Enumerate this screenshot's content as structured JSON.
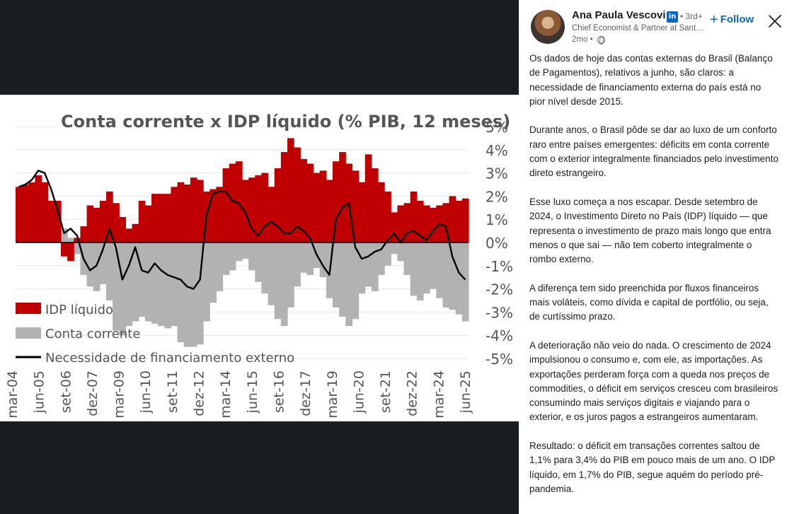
{
  "post": {
    "author": {
      "name": "Ana Paula Vescovi",
      "degree": "• 3rd+",
      "headline": "Chief Economist & Partner at Santander",
      "time": "2mo •",
      "profile_icon": "linkedin-icon",
      "visibility_icon": "globe-icon"
    },
    "follow_label": "Follow",
    "close_icon": "close-icon",
    "paragraphs": [
      "Os dados de hoje das contas externas do Brasil (Balanço de Pagamentos), relativos a junho, são claros: a necessidade de financiamento externa do país está no pior nível desde 2015.",
      "Durante anos, o Brasil pôde se dar ao luxo de um conforto raro entre países emergentes: déficits em conta corrente com o exterior integralmente financiados pelo investimento direto estrangeiro.",
      "Esse luxo começa a nos escapar. Desde setembro de 2024, o Investimento Direto no País (IDP) líquido — que representa o investimento de prazo mais longo que entra menos o que sai — não tem coberto integralmente o rombo externo.",
      "A diferença tem sido preenchida por fluxos financeiros mais voláteis, como dívida e capital de portfólio, ou seja, de curtíssimo prazo.",
      "A deterioração não veio do nada. O crescimento de 2024 impulsionou o consumo e, com ele, as importações. As exportações perderam força com a queda nos preços de commodities, o déficit em serviços cresceu com brasileiros consumindo mais serviços digitais e viajando para o exterior, e os juros pagos a estrangeiros aumentaram.",
      "Resultado: o déficit em transações correntes saltou de 1,1% para 3,4% do PIB em pouco mais de um ano. O IDP líquido, em 1,7% do PIB, segue aquém do período pré-pandemia."
    ]
  },
  "chart_data": {
    "type": "area",
    "title": "Conta corrente x IDP líquido (% PIB, 12 meses)",
    "y_ticks": [
      "5%",
      "4%",
      "3%",
      "2%",
      "1%",
      "0%",
      "-1%",
      "-2%",
      "-3%",
      "-4%",
      "-5%"
    ],
    "ylim": [
      -5,
      5
    ],
    "x_ticks": [
      "mar-04",
      "jun-05",
      "set-06",
      "dez-07",
      "mar-09",
      "jun-10",
      "set-11",
      "dez-12",
      "mar-14",
      "jun-15",
      "set-16",
      "dez-17",
      "mar-19",
      "jun-20",
      "set-21",
      "dez-22",
      "mar-24",
      "jun-25"
    ],
    "grid": true,
    "legend_position": "bottom-left",
    "colors": {
      "idp": "#c00000",
      "cc": "#b2b2b2",
      "nfe": "#000000"
    },
    "series": [
      {
        "name": "IDP líquido",
        "key": "idp",
        "style": "bar",
        "values": [
          2.4,
          2.5,
          2.6,
          2.9,
          2.6,
          1.8,
          1.8,
          -0.6,
          -0.8,
          0.2,
          0.7,
          1.6,
          1.5,
          1.8,
          2.2,
          1.7,
          1.1,
          0.6,
          0.8,
          1.8,
          1.6,
          2.1,
          2.1,
          2.1,
          2.4,
          2.6,
          2.5,
          2.8,
          2.7,
          2.2,
          2.3,
          2.4,
          3.2,
          3.4,
          3.5,
          2.7,
          2.8,
          2.9,
          3.0,
          2.4,
          3.2,
          3.9,
          4.5,
          4.1,
          3.6,
          3.4,
          3.0,
          3.1,
          2.7,
          3.5,
          3.9,
          3.4,
          3.1,
          2.6,
          3.8,
          3.2,
          2.6,
          2.2,
          1.3,
          1.6,
          1.7,
          2.2,
          1.8,
          1.6,
          1.5,
          1.6,
          1.7,
          2.0,
          1.8,
          1.9
        ]
      },
      {
        "name": "Conta corrente",
        "key": "cc",
        "style": "area",
        "values": [
          0.8,
          1.2,
          1.4,
          1.6,
          1.5,
          1.4,
          1.0,
          0.6,
          0.2,
          -0.5,
          -1.4,
          -1.9,
          -2.1,
          -1.8,
          -2.5,
          -3.8,
          -4.0,
          -3.6,
          -3.4,
          -3.2,
          -3.4,
          -3.5,
          -3.6,
          -3.7,
          -3.6,
          -4.3,
          -4.5,
          -4.5,
          -4.4,
          -3.4,
          -2.6,
          -2.1,
          -1.4,
          -1.2,
          -0.8,
          -0.7,
          -1.2,
          -1.7,
          -2.2,
          -2.7,
          -3.3,
          -3.6,
          -2.8,
          -1.9,
          -1.3,
          -1.4,
          -1.1,
          -1.5,
          -2.4,
          -2.8,
          -3.2,
          -3.6,
          -3.3,
          -2.2,
          -1.9,
          -2.1,
          -1.4,
          -1.0,
          -0.5,
          -0.8,
          -1.4,
          -2.3,
          -2.5,
          -2.2,
          -2.0,
          -2.4,
          -2.8,
          -2.9,
          -3.1,
          -3.4
        ]
      },
      {
        "name": "Necessidade de financiamento externo",
        "key": "nfe",
        "style": "line",
        "values": [
          2.4,
          2.5,
          2.7,
          3.1,
          3.0,
          2.3,
          1.4,
          0.4,
          0.6,
          0.3,
          -0.7,
          -1.2,
          -1.0,
          -0.3,
          0.6,
          -0.2,
          -1.6,
          -1.0,
          -0.2,
          -1.2,
          -1.3,
          -0.9,
          -1.2,
          -1.4,
          -1.5,
          -1.6,
          -1.9,
          -2.0,
          -1.6,
          1.2,
          2.1,
          2.2,
          2.2,
          1.8,
          1.7,
          1.3,
          0.6,
          0.3,
          0.7,
          0.9,
          0.7,
          0.4,
          0.4,
          0.7,
          0.5,
          0.2,
          -0.5,
          -1.0,
          -1.4,
          1.0,
          1.5,
          1.7,
          -0.2,
          -0.7,
          -0.6,
          -0.4,
          -0.3,
          0.1,
          0.4,
          0.0,
          0.4,
          0.5,
          0.3,
          0.1,
          0.5,
          0.8,
          0.7,
          -0.6,
          -1.3,
          -1.6
        ]
      }
    ]
  }
}
